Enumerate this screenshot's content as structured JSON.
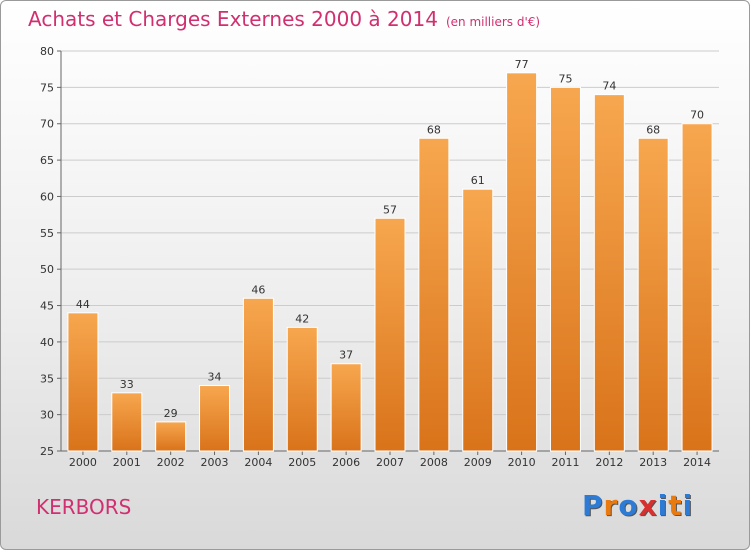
{
  "header": {
    "title": "Achats et Charges Externes 2000 à 2014",
    "unit": "(en milliers d'€)"
  },
  "footer": {
    "commune": "KERBORS",
    "logo_text": "Proxiti",
    "logo_colors": [
      "#2e7bd6",
      "#e87a10",
      "#2e7bd6",
      "#d83030",
      "#2e7bd6",
      "#e87a10",
      "#2e7bd6"
    ]
  },
  "colors": {
    "bar_light": "#f7a74f",
    "bar_dark": "#d9731a",
    "grid": "#cccccc",
    "text": "#333333",
    "accent": "#d03070"
  },
  "chart_data": {
    "type": "bar",
    "categories": [
      "2000",
      "2001",
      "2002",
      "2003",
      "2004",
      "2005",
      "2006",
      "2007",
      "2008",
      "2009",
      "2010",
      "2011",
      "2012",
      "2013",
      "2014"
    ],
    "values": [
      44,
      33,
      29,
      34,
      46,
      42,
      37,
      57,
      68,
      61,
      77,
      75,
      74,
      68,
      70
    ],
    "ylim": [
      25,
      80
    ],
    "yticks": [
      25,
      30,
      35,
      40,
      45,
      50,
      55,
      60,
      65,
      70,
      75,
      80
    ],
    "grid": true,
    "data_labels": true
  }
}
